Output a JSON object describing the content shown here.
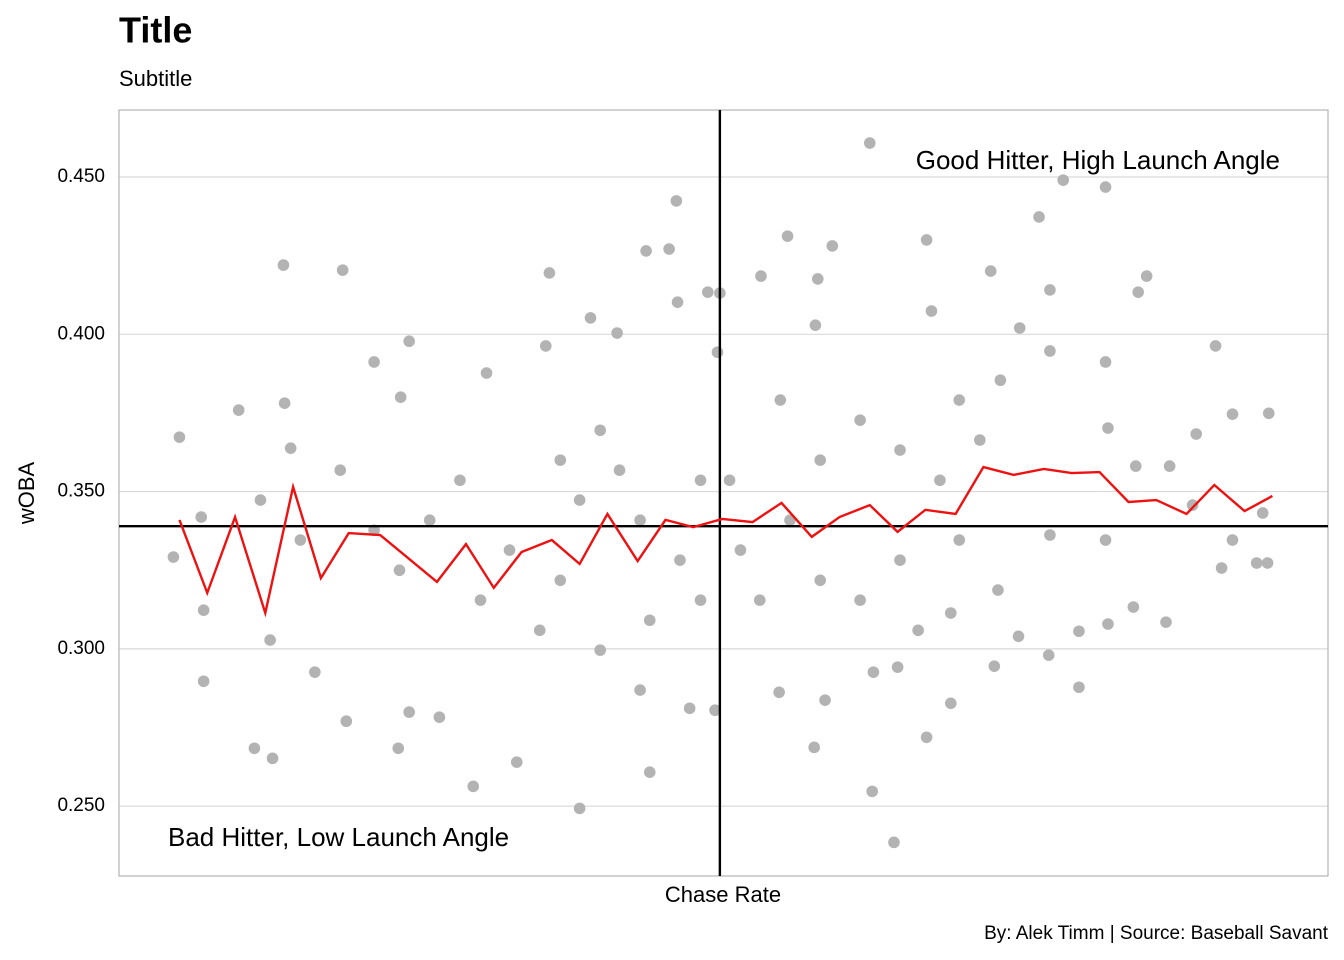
{
  "chart_data": {
    "type": "scatter",
    "title": "Title",
    "subtitle": "Subtitle",
    "x_label": "Chase Rate",
    "y_label": "wOBA",
    "caption": "By: Alek Timm  |  Source: Baseball Savant",
    "annotations": [
      "Good Hitter, High Launch Angle",
      "Bad Hitter, Low Launch Angle"
    ],
    "annotation_color": "#0000ff",
    "xlim": [
      0,
      1
    ],
    "ylim": [
      0.2278,
      0.4713
    ],
    "yticks": [
      {
        "value": 0.25,
        "label": "0.250"
      },
      {
        "value": 0.3,
        "label": "0.300"
      },
      {
        "value": 0.35,
        "label": "0.350"
      },
      {
        "value": 0.4,
        "label": "0.400"
      },
      {
        "value": 0.45,
        "label": "0.450"
      }
    ],
    "grid": true,
    "hline": 0.339,
    "vline": 0.497,
    "point_color": "#b3b3b3",
    "points": {
      "x": [
        0.045,
        0.05,
        0.068,
        0.07,
        0.07,
        0.099,
        0.112,
        0.127,
        0.136,
        0.137,
        0.142,
        0.185,
        0.125,
        0.162,
        0.188,
        0.211,
        0.233,
        0.24,
        0.231,
        0.24,
        0.265,
        0.293,
        0.304,
        0.329,
        0.356,
        0.353,
        0.381,
        0.39,
        0.412,
        0.436,
        0.455,
        0.461,
        0.462,
        0.439,
        0.472,
        0.487,
        0.497,
        0.495,
        0.493,
        0.505,
        0.531,
        0.553,
        0.578,
        0.59,
        0.576,
        0.546,
        0.575,
        0.584,
        0.624,
        0.623,
        0.641,
        0.668,
        0.672,
        0.668,
        0.688,
        0.621,
        0.721,
        0.761,
        0.77,
        0.781,
        0.816,
        0.85,
        0.843,
        0.907,
        0.921,
        0.951,
        0.946,
        0.941,
        0.95,
        0.921,
        0.912,
        0.888,
        0.891,
        0.866,
        0.839,
        0.818,
        0.794,
        0.794,
        0.769,
        0.744,
        0.724,
        0.688,
        0.661,
        0.644,
        0.745,
        0.77,
        0.816,
        0.818,
        0.869,
        0.841,
        0.816,
        0.77,
        0.727,
        0.695,
        0.646,
        0.613,
        0.58,
        0.555,
        0.53,
        0.514,
        0.481,
        0.464,
        0.439,
        0.414,
        0.398,
        0.365,
        0.348,
        0.323,
        0.299,
        0.282,
        0.257,
        0.232,
        0.211,
        0.183,
        0.15,
        0.117,
        0.58,
        0.613,
        0.646,
        0.679,
        0.712,
        0.729,
        0.695,
        0.547,
        0.481,
        0.431,
        0.381,
        0.365,
        0.398,
        0.431
      ],
      "y": [
        0.3292,
        0.3673,
        0.3419,
        0.2897,
        0.3123,
        0.3759,
        0.2684,
        0.2652,
        0.422,
        0.3781,
        0.3638,
        0.4204,
        0.3028,
        0.2926,
        0.277,
        0.3912,
        0.38,
        0.3978,
        0.2684,
        0.2799,
        0.2783,
        0.2563,
        0.3877,
        0.264,
        0.4195,
        0.3963,
        0.2493,
        0.4052,
        0.4004,
        0.4265,
        0.4271,
        0.4424,
        0.4102,
        0.2608,
        0.2811,
        0.4134,
        0.4131,
        0.3943,
        0.2805,
        0.3536,
        0.4185,
        0.4312,
        0.4176,
        0.4281,
        0.4029,
        0.2862,
        0.2687,
        0.2837,
        0.2926,
        0.2547,
        0.2385,
        0.43,
        0.4074,
        0.2719,
        0.2827,
        0.4608,
        0.4201,
        0.4373,
        0.4141,
        0.449,
        0.4468,
        0.4185,
        0.4134,
        0.3963,
        0.3746,
        0.3749,
        0.3432,
        0.3273,
        0.3273,
        0.3346,
        0.3257,
        0.3457,
        0.3683,
        0.3085,
        0.3133,
        0.3079,
        0.3056,
        0.2878,
        0.298,
        0.304,
        0.2945,
        0.3114,
        0.3059,
        0.2942,
        0.402,
        0.3947,
        0.3912,
        0.3702,
        0.3581,
        0.3581,
        0.3346,
        0.3362,
        0.3187,
        0.3346,
        0.3282,
        0.3155,
        0.3218,
        0.3409,
        0.3155,
        0.3314,
        0.3155,
        0.3282,
        0.3091,
        0.3568,
        0.3695,
        0.36,
        0.3059,
        0.3314,
        0.3155,
        0.3536,
        0.3409,
        0.325,
        0.3377,
        0.3568,
        0.3346,
        0.3473,
        0.36,
        0.3727,
        0.3632,
        0.3536,
        0.3664,
        0.3854,
        0.3791,
        0.3791,
        0.3536,
        0.3409,
        0.3473,
        0.3218,
        0.2996,
        0.2869
      ]
    },
    "trend_color": "#ee1111",
    "trend": {
      "x": [
        0.05,
        0.073,
        0.096,
        0.121,
        0.144,
        0.167,
        0.19,
        0.216,
        0.263,
        0.287,
        0.31,
        0.333,
        0.358,
        0.381,
        0.404,
        0.429,
        0.452,
        0.475,
        0.499,
        0.524,
        0.548,
        0.573,
        0.596,
        0.621,
        0.644,
        0.667,
        0.692,
        0.715,
        0.74,
        0.765,
        0.788,
        0.811,
        0.835,
        0.858,
        0.883,
        0.906,
        0.931,
        0.954
      ],
      "y": [
        0.341,
        0.3178,
        0.3419,
        0.3114,
        0.3515,
        0.3225,
        0.3368,
        0.3362,
        0.3213,
        0.3333,
        0.3194,
        0.3308,
        0.3346,
        0.327,
        0.3429,
        0.3279,
        0.341,
        0.3387,
        0.3413,
        0.3403,
        0.3464,
        0.3356,
        0.3419,
        0.3457,
        0.3372,
        0.3442,
        0.3429,
        0.3578,
        0.3553,
        0.3572,
        0.3559,
        0.3562,
        0.3467,
        0.3473,
        0.3429,
        0.3521,
        0.3438,
        0.3486
      ]
    }
  }
}
